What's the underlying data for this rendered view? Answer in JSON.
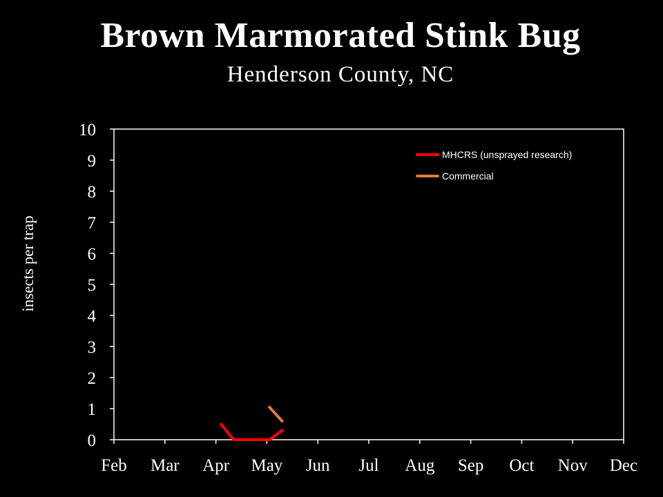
{
  "chart_data": {
    "type": "line",
    "title": "Brown Marmorated Stink Bug",
    "subtitle": "Henderson County, NC",
    "ylabel": "insects per trap",
    "xlabel": "",
    "categories": [
      "Feb",
      "Mar",
      "Apr",
      "May",
      "Jun",
      "Jul",
      "Aug",
      "Sep",
      "Oct",
      "Nov",
      "Dec"
    ],
    "ylim": [
      0,
      10
    ],
    "yticks": [
      "0",
      "1",
      "2",
      "3",
      "4",
      "5",
      "6",
      "7",
      "8",
      "9",
      "10"
    ],
    "grid": false,
    "legend_position": "top-right",
    "series": [
      {
        "name": "MHCRS (unsprayed research)",
        "color": "#ff0000",
        "points": [
          [
            2.1,
            0.5
          ],
          [
            2.35,
            0.0
          ],
          [
            3.05,
            0.0
          ],
          [
            3.3,
            0.3
          ]
        ]
      },
      {
        "name": "Commercial",
        "color": "#e8793c",
        "points": [
          [
            3.05,
            1.05
          ],
          [
            3.3,
            0.6
          ]
        ]
      }
    ]
  }
}
